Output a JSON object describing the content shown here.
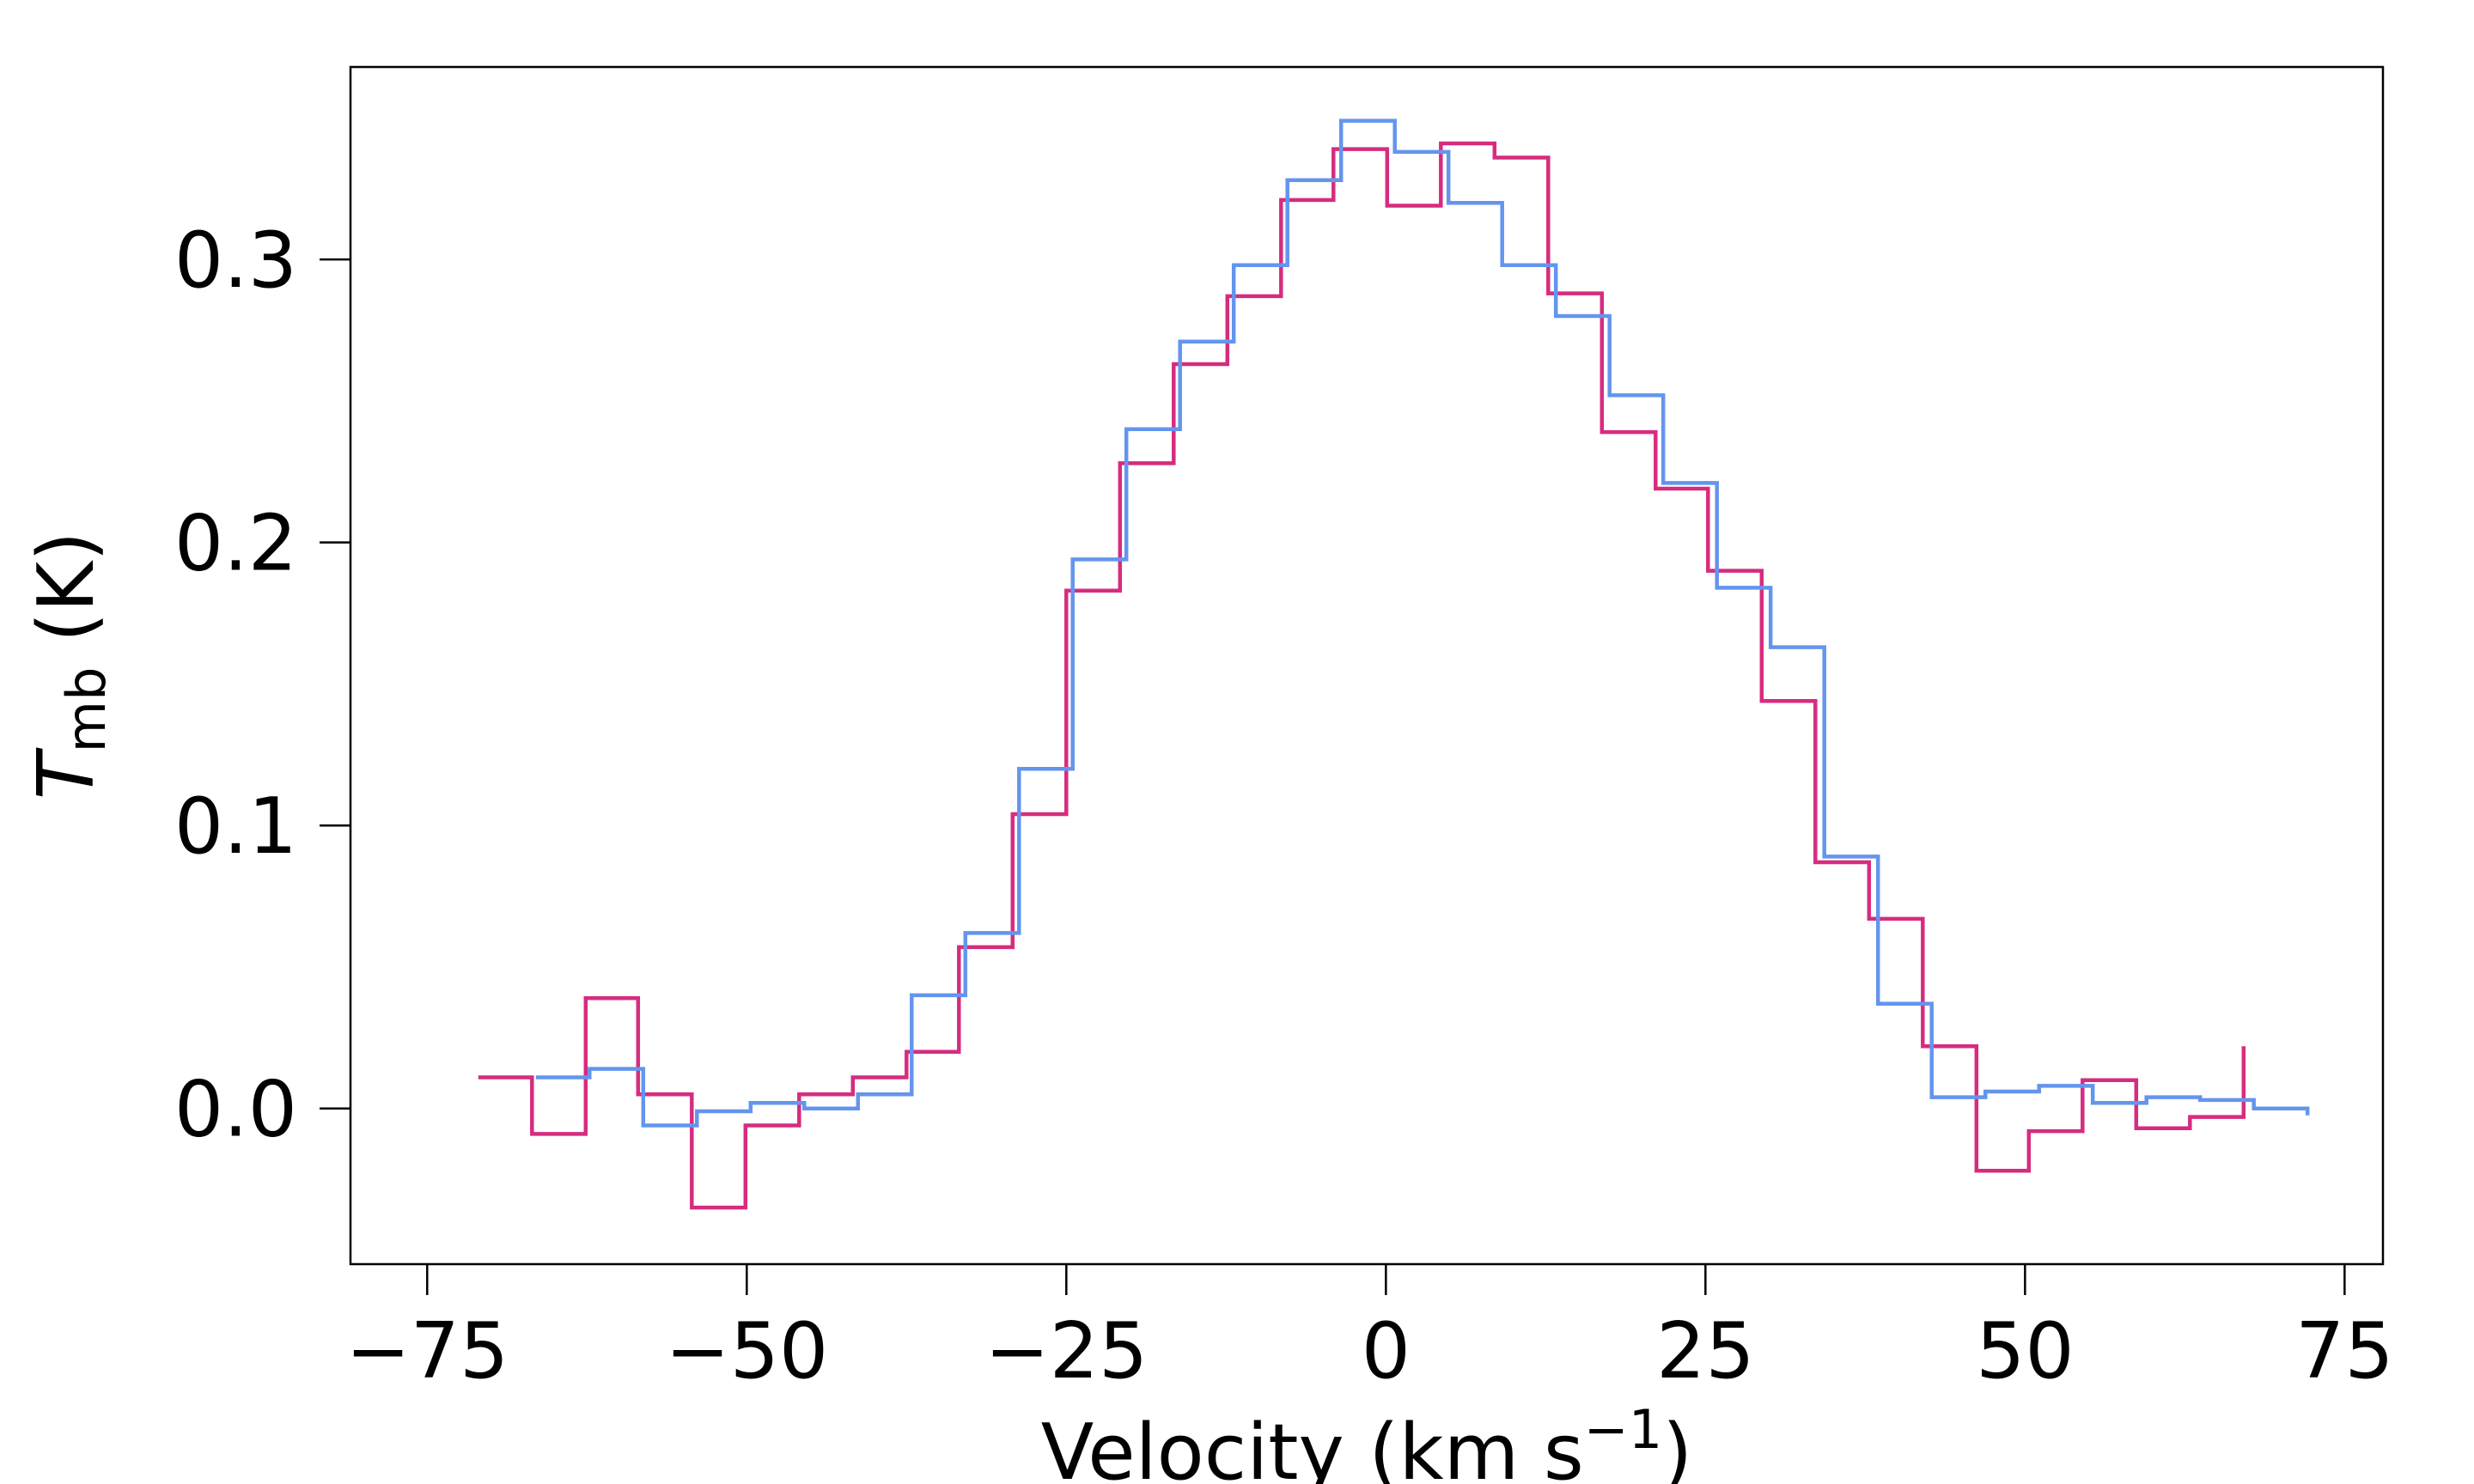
{
  "chart_data": {
    "type": "line",
    "style": "step",
    "title": "",
    "xlabel": "Velocity (km s",
    "xlabel_superscript": "−1",
    "xlabel_close": ")",
    "ylabel_main": "T",
    "ylabel_subscript": "mb",
    "ylabel_unit": " (K)",
    "xlim": [
      -81,
      78
    ],
    "ylim": [
      -0.055,
      0.368
    ],
    "xticks": [
      -75,
      -50,
      -25,
      0,
      25,
      50,
      75
    ],
    "xtick_labels": [
      "−75",
      "−50",
      "−25",
      "0",
      "25",
      "50",
      "75"
    ],
    "yticks": [
      0.0,
      0.1,
      0.2,
      0.3
    ],
    "ytick_labels": [
      "0.0",
      "0.1",
      "0.2",
      "0.3"
    ],
    "grid": false,
    "legend": "none",
    "series": [
      {
        "name": "magenta-spectrum",
        "color": "#d62c7f",
        "edges": [
          -71.0,
          -66.8,
          -62.6,
          -58.5,
          -54.3,
          -50.1,
          -45.9,
          -41.7,
          -37.5,
          -33.4,
          -29.2,
          -25.0,
          -20.8,
          -16.6,
          -12.4,
          -8.2,
          -4.1,
          0.1,
          4.3,
          8.5,
          12.7,
          16.9,
          21.1,
          25.2,
          29.4,
          33.6,
          37.8,
          42.0,
          46.2,
          50.3,
          54.5,
          58.7,
          62.9,
          67.1
        ],
        "values": [
          0.011,
          -0.009,
          0.039,
          0.005,
          -0.035,
          -0.006,
          0.005,
          0.011,
          0.02,
          0.057,
          0.104,
          0.183,
          0.228,
          0.263,
          0.287,
          0.321,
          0.339,
          0.319,
          0.341,
          0.336,
          0.288,
          0.239,
          0.219,
          0.19,
          0.144,
          0.087,
          0.067,
          0.022,
          -0.022,
          -0.008,
          0.01,
          -0.007,
          -0.003
        ],
        "end_spike": [
          67.1,
          -0.003,
          0.022
        ]
      },
      {
        "name": "blue-spectrum",
        "color": "#6495ed",
        "edges": [
          -66.5,
          -62.3,
          -58.1,
          -53.9,
          -49.7,
          -45.5,
          -41.3,
          -37.1,
          -32.9,
          -28.7,
          -24.5,
          -20.3,
          -16.1,
          -11.9,
          -7.7,
          -3.5,
          0.7,
          4.9,
          9.1,
          13.3,
          17.5,
          21.7,
          25.9,
          30.1,
          34.3,
          38.5,
          42.7,
          46.9,
          51.1,
          55.3,
          59.5,
          63.7,
          67.9,
          72.1
        ],
        "values": [
          0.011,
          0.014,
          -0.006,
          -0.001,
          0.002,
          0.0,
          0.005,
          0.04,
          0.062,
          0.12,
          0.194,
          0.24,
          0.271,
          0.298,
          0.328,
          0.349,
          0.338,
          0.32,
          0.298,
          0.28,
          0.252,
          0.221,
          0.184,
          0.163,
          0.089,
          0.037,
          0.004,
          0.006,
          0.008,
          0.002,
          0.004,
          0.003,
          0.0
        ]
      }
    ]
  }
}
